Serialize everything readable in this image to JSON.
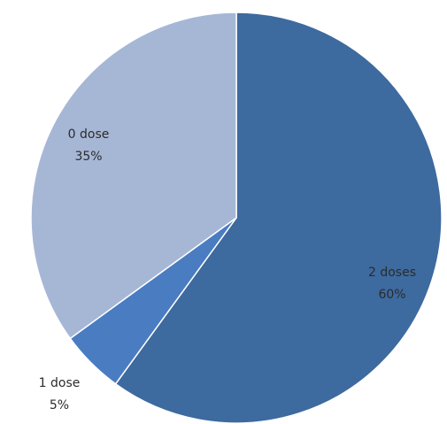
{
  "chart_data": {
    "type": "pie",
    "title": "",
    "categories": [
      "2 doses",
      "1 dose",
      "0 dose"
    ],
    "values": [
      60,
      5,
      35
    ],
    "labels": [
      "60%",
      "5%",
      "35%"
    ],
    "colors": [
      "#3d6a9f",
      "#4a7cc1",
      "#a6b7d6"
    ],
    "start_angle_deg": 0,
    "direction": "clockwise",
    "legend": "none"
  }
}
